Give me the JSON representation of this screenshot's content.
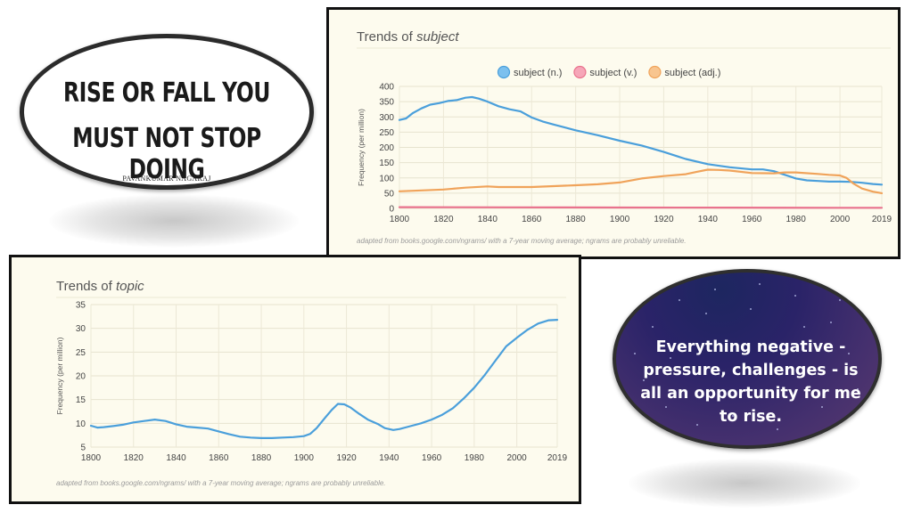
{
  "quote_top": {
    "line1": "RISE OR FALL YOU",
    "line2": "MUST NOT STOP DOING",
    "author": "PAVANKUMAR NAGARAJ"
  },
  "quote_bottom": {
    "text": "Everything negative - pressure, challenges - is all an opportunity for me to rise."
  },
  "chart_data": [
    {
      "type": "line",
      "title_prefix": "Trends of ",
      "title_word": "subject",
      "ylabel": "Frequency (per million)",
      "xlabel": "",
      "xlim": [
        1800,
        2019
      ],
      "ylim": [
        0,
        400
      ],
      "x_ticks": [
        "1800",
        "1820",
        "1840",
        "1860",
        "1880",
        "1900",
        "1920",
        "1940",
        "1960",
        "1980",
        "2000",
        "2019"
      ],
      "y_ticks": [
        "0",
        "50",
        "100",
        "150",
        "200",
        "250",
        "300",
        "350",
        "400"
      ],
      "grid": true,
      "legend_position": "top",
      "footer": "adapted from books.google.com/ngrams/ with a 7-year moving average; ngrams are probably unreliable.",
      "series": [
        {
          "name": "subject (n.)",
          "color": "#4a9fdb",
          "fill": "#7cc0ee",
          "points": [
            [
              1800,
              290
            ],
            [
              1803,
              295
            ],
            [
              1806,
              312
            ],
            [
              1810,
              328
            ],
            [
              1814,
              340
            ],
            [
              1818,
              345
            ],
            [
              1822,
              352
            ],
            [
              1826,
              355
            ],
            [
              1830,
              363
            ],
            [
              1833,
              365
            ],
            [
              1836,
              360
            ],
            [
              1840,
              350
            ],
            [
              1845,
              335
            ],
            [
              1850,
              325
            ],
            [
              1855,
              318
            ],
            [
              1860,
              298
            ],
            [
              1865,
              285
            ],
            [
              1870,
              275
            ],
            [
              1880,
              256
            ],
            [
              1890,
              240
            ],
            [
              1900,
              222
            ],
            [
              1910,
              206
            ],
            [
              1920,
              185
            ],
            [
              1930,
              162
            ],
            [
              1940,
              145
            ],
            [
              1950,
              135
            ],
            [
              1960,
              128
            ],
            [
              1965,
              128
            ],
            [
              1970,
              122
            ],
            [
              1975,
              110
            ],
            [
              1980,
              98
            ],
            [
              1985,
              92
            ],
            [
              1990,
              90
            ],
            [
              1995,
              88
            ],
            [
              2000,
              88
            ],
            [
              2005,
              87
            ],
            [
              2010,
              84
            ],
            [
              2015,
              80
            ],
            [
              2019,
              78
            ]
          ]
        },
        {
          "name": "subject (v.)",
          "color": "#e9728d",
          "fill": "#f6a6b8",
          "points": [
            [
              1800,
              4
            ],
            [
              1850,
              3.5
            ],
            [
              1900,
              3
            ],
            [
              1950,
              2.5
            ],
            [
              2000,
              2
            ],
            [
              2019,
              2
            ]
          ]
        },
        {
          "name": "subject (adj.)",
          "color": "#f0a35a",
          "fill": "#f8c58f",
          "points": [
            [
              1800,
              56
            ],
            [
              1810,
              59
            ],
            [
              1820,
              62
            ],
            [
              1830,
              68
            ],
            [
              1840,
              72
            ],
            [
              1845,
              70
            ],
            [
              1860,
              70
            ],
            [
              1870,
              73
            ],
            [
              1880,
              76
            ],
            [
              1890,
              79
            ],
            [
              1900,
              85
            ],
            [
              1910,
              98
            ],
            [
              1920,
              106
            ],
            [
              1930,
              112
            ],
            [
              1935,
              120
            ],
            [
              1940,
              127
            ],
            [
              1945,
              126
            ],
            [
              1950,
              124
            ],
            [
              1960,
              116
            ],
            [
              1970,
              115
            ],
            [
              1975,
              118
            ],
            [
              1980,
              118
            ],
            [
              1990,
              113
            ],
            [
              1995,
              110
            ],
            [
              2000,
              108
            ],
            [
              2003,
              100
            ],
            [
              2006,
              82
            ],
            [
              2010,
              65
            ],
            [
              2015,
              55
            ],
            [
              2019,
              50
            ]
          ]
        }
      ]
    },
    {
      "type": "line",
      "title_prefix": "Trends of ",
      "title_word": "topic",
      "ylabel": "Frequency (per million)",
      "xlabel": "",
      "xlim": [
        1800,
        2019
      ],
      "ylim": [
        5,
        35
      ],
      "x_ticks": [
        "1800",
        "1820",
        "1840",
        "1860",
        "1880",
        "1900",
        "1920",
        "1940",
        "1960",
        "1980",
        "2000",
        "2019"
      ],
      "y_ticks": [
        "5",
        "10",
        "15",
        "20",
        "25",
        "30",
        "35"
      ],
      "grid": true,
      "legend_position": "none",
      "footer": "adapted from books.google.com/ngrams/ with a 7-year moving average; ngrams are probably unreliable.",
      "series": [
        {
          "color": "#4a9fdb",
          "points": [
            [
              1800,
              9.5
            ],
            [
              1803,
              9.1
            ],
            [
              1806,
              9.2
            ],
            [
              1810,
              9.4
            ],
            [
              1815,
              9.7
            ],
            [
              1820,
              10.2
            ],
            [
              1825,
              10.5
            ],
            [
              1830,
              10.8
            ],
            [
              1835,
              10.5
            ],
            [
              1840,
              9.8
            ],
            [
              1845,
              9.3
            ],
            [
              1850,
              9.1
            ],
            [
              1855,
              8.9
            ],
            [
              1860,
              8.3
            ],
            [
              1865,
              7.7
            ],
            [
              1870,
              7.2
            ],
            [
              1875,
              7
            ],
            [
              1880,
              6.9
            ],
            [
              1885,
              6.9
            ],
            [
              1890,
              7
            ],
            [
              1895,
              7.1
            ],
            [
              1900,
              7.3
            ],
            [
              1903,
              7.8
            ],
            [
              1906,
              9
            ],
            [
              1910,
              11.2
            ],
            [
              1913,
              12.8
            ],
            [
              1916,
              14.1
            ],
            [
              1919,
              14
            ],
            [
              1922,
              13.3
            ],
            [
              1926,
              12
            ],
            [
              1930,
              10.8
            ],
            [
              1935,
              9.8
            ],
            [
              1938,
              9
            ],
            [
              1942,
              8.6
            ],
            [
              1945,
              8.8
            ],
            [
              1950,
              9.4
            ],
            [
              1955,
              10
            ],
            [
              1960,
              10.8
            ],
            [
              1965,
              11.8
            ],
            [
              1970,
              13.2
            ],
            [
              1975,
              15.2
            ],
            [
              1980,
              17.5
            ],
            [
              1985,
              20.2
            ],
            [
              1990,
              23.2
            ],
            [
              1995,
              26.2
            ],
            [
              2000,
              28
            ],
            [
              2005,
              29.7
            ],
            [
              2010,
              31
            ],
            [
              2015,
              31.7
            ],
            [
              2019,
              31.8
            ]
          ]
        }
      ]
    }
  ]
}
